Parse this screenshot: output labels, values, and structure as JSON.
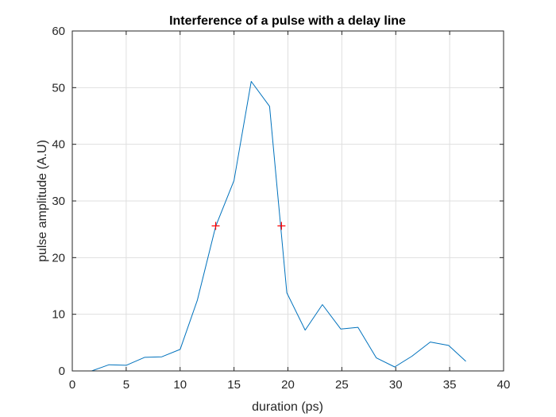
{
  "chart_data": {
    "type": "line",
    "title": "Interference of a pulse with a delay line",
    "xlabel": "duration (ps)",
    "ylabel": "pulse amplitude (A.U)",
    "xlim": [
      0,
      40
    ],
    "ylim": [
      0,
      60
    ],
    "xticks": [
      0,
      5,
      10,
      15,
      20,
      25,
      30,
      35,
      40
    ],
    "yticks": [
      0,
      10,
      20,
      30,
      40,
      50,
      60
    ],
    "grid": true,
    "series": [
      {
        "x": [
          1.8,
          3.4,
          5.0,
          6.7,
          8.3,
          10.0,
          11.6,
          13.3,
          15.0,
          16.6,
          18.3,
          19.9,
          21.6,
          23.2,
          24.9,
          26.5,
          28.2,
          29.9,
          31.5,
          33.2,
          34.9,
          36.5
        ],
        "y": [
          0.0,
          1.1,
          1.0,
          2.4,
          2.5,
          3.8,
          12.5,
          25.5,
          33.6,
          51.1,
          46.7,
          13.8,
          7.2,
          11.7,
          7.4,
          7.7,
          2.3,
          0.7,
          2.6,
          5.1,
          4.5,
          1.7
        ],
        "color": "#0072BD"
      }
    ],
    "markers": {
      "x": [
        13.3,
        19.4
      ],
      "y": [
        25.6,
        25.6
      ],
      "color": "#FF0000",
      "symbol": "+"
    }
  }
}
